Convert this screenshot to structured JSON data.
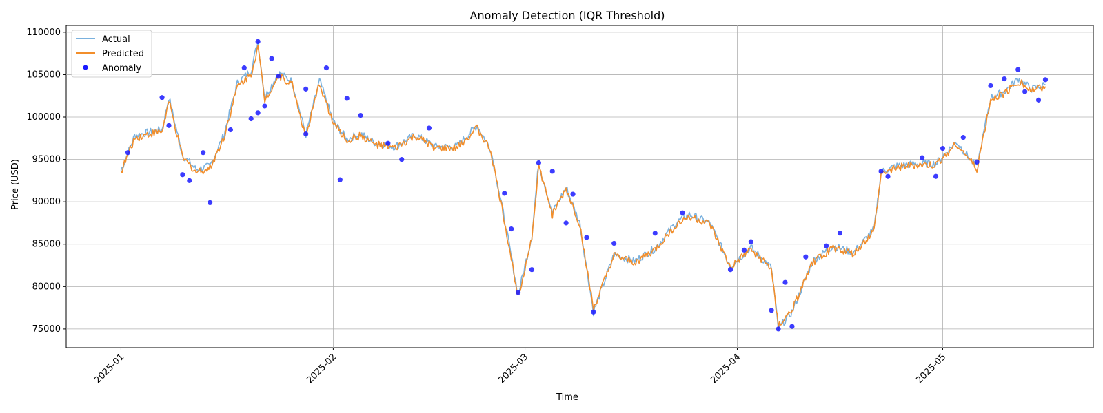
{
  "chart_data": {
    "type": "line",
    "title": "Anomaly Detection (IQR Threshold)",
    "xlabel": "Time",
    "ylabel": "Price (USD)",
    "x_range": [
      "2024-12-24",
      "2025-05-23"
    ],
    "ylim": [
      72800,
      110800
    ],
    "x_ticks": [
      "2025-01",
      "2025-02",
      "2025-03",
      "2025-04",
      "2025-05"
    ],
    "y_ticks": [
      75000,
      80000,
      85000,
      90000,
      95000,
      100000,
      105000,
      110000
    ],
    "grid": true,
    "legend_position": "top-left",
    "colors": {
      "actual": "#7ab1de",
      "predicted": "#f28e2b",
      "anomaly": "#1a1aff"
    },
    "series": [
      {
        "name": "Actual",
        "x": [
          "2025-01-01",
          "2025-01-03",
          "2025-01-05",
          "2025-01-07",
          "2025-01-08",
          "2025-01-10",
          "2025-01-12",
          "2025-01-14",
          "2025-01-16",
          "2025-01-18",
          "2025-01-20",
          "2025-01-21",
          "2025-01-22",
          "2025-01-24",
          "2025-01-26",
          "2025-01-28",
          "2025-01-30",
          "2025-02-01",
          "2025-02-03",
          "2025-02-05",
          "2025-02-07",
          "2025-02-10",
          "2025-02-13",
          "2025-02-16",
          "2025-02-19",
          "2025-02-22",
          "2025-02-24",
          "2025-02-26",
          "2025-02-28",
          "2025-03-02",
          "2025-03-03",
          "2025-03-05",
          "2025-03-07",
          "2025-03-09",
          "2025-03-11",
          "2025-03-14",
          "2025-03-17",
          "2025-03-20",
          "2025-03-23",
          "2025-03-25",
          "2025-03-28",
          "2025-03-31",
          "2025-04-03",
          "2025-04-06",
          "2025-04-07",
          "2025-04-09",
          "2025-04-12",
          "2025-04-15",
          "2025-04-18",
          "2025-04-21",
          "2025-04-22",
          "2025-04-24",
          "2025-04-27",
          "2025-04-30",
          "2025-05-03",
          "2025-05-06",
          "2025-05-08",
          "2025-05-10",
          "2025-05-12",
          "2025-05-14",
          "2025-05-16"
        ],
        "values": [
          93700,
          97800,
          98200,
          98500,
          102300,
          95500,
          93800,
          94200,
          97800,
          104000,
          105500,
          108900,
          102300,
          105200,
          104200,
          97900,
          104300,
          99500,
          97400,
          98000,
          97000,
          96500,
          97900,
          96500,
          96500,
          99000,
          96200,
          88000,
          79000,
          86000,
          94600,
          88700,
          91700,
          87500,
          77000,
          83800,
          83000,
          84500,
          87500,
          88500,
          87500,
          82400,
          84600,
          82200,
          75000,
          77000,
          83000,
          84800,
          84000,
          86800,
          93500,
          94200,
          94500,
          94500,
          97100,
          94000,
          102300,
          103000,
          104500,
          103300,
          103800
        ]
      },
      {
        "name": "Predicted",
        "x": [
          "2025-01-01",
          "2025-01-03",
          "2025-01-05",
          "2025-01-07",
          "2025-01-08",
          "2025-01-10",
          "2025-01-12",
          "2025-01-14",
          "2025-01-16",
          "2025-01-18",
          "2025-01-20",
          "2025-01-21",
          "2025-01-22",
          "2025-01-24",
          "2025-01-26",
          "2025-01-28",
          "2025-01-30",
          "2025-02-01",
          "2025-02-03",
          "2025-02-05",
          "2025-02-07",
          "2025-02-10",
          "2025-02-13",
          "2025-02-16",
          "2025-02-19",
          "2025-02-22",
          "2025-02-24",
          "2025-02-26",
          "2025-02-28",
          "2025-03-02",
          "2025-03-03",
          "2025-03-05",
          "2025-03-07",
          "2025-03-09",
          "2025-03-11",
          "2025-03-14",
          "2025-03-17",
          "2025-03-20",
          "2025-03-23",
          "2025-03-25",
          "2025-03-28",
          "2025-03-31",
          "2025-04-03",
          "2025-04-06",
          "2025-04-07",
          "2025-04-09",
          "2025-04-12",
          "2025-04-15",
          "2025-04-18",
          "2025-04-21",
          "2025-04-22",
          "2025-04-24",
          "2025-04-27",
          "2025-04-30",
          "2025-05-03",
          "2025-05-06",
          "2025-05-08",
          "2025-05-10",
          "2025-05-12",
          "2025-05-14",
          "2025-05-16"
        ],
        "values": [
          93500,
          97500,
          98000,
          98300,
          101800,
          95200,
          93500,
          94000,
          97500,
          103600,
          105100,
          108300,
          102000,
          104900,
          103900,
          97600,
          104000,
          99300,
          97200,
          97800,
          96800,
          96300,
          97700,
          96300,
          96300,
          98700,
          96000,
          87700,
          78800,
          85800,
          94200,
          88500,
          91500,
          87300,
          77300,
          83600,
          82800,
          84300,
          87200,
          88300,
          87300,
          82200,
          84400,
          82000,
          75300,
          77200,
          82800,
          84600,
          83800,
          86600,
          93200,
          94000,
          94300,
          94300,
          96900,
          93800,
          102000,
          102800,
          104200,
          103100,
          103600
        ]
      },
      {
        "name": "Anomaly",
        "x": [
          "2025-01-02",
          "2025-01-07",
          "2025-01-08",
          "2025-01-10",
          "2025-01-11",
          "2025-01-13",
          "2025-01-14",
          "2025-01-17",
          "2025-01-19",
          "2025-01-20",
          "2025-01-21",
          "2025-01-21",
          "2025-01-22",
          "2025-01-23",
          "2025-01-24",
          "2025-01-28",
          "2025-01-28",
          "2025-01-31",
          "2025-02-02",
          "2025-02-03",
          "2025-02-05",
          "2025-02-09",
          "2025-02-11",
          "2025-02-15",
          "2025-02-26",
          "2025-02-27",
          "2025-02-28",
          "2025-03-02",
          "2025-03-03",
          "2025-03-05",
          "2025-03-07",
          "2025-03-08",
          "2025-03-10",
          "2025-03-11",
          "2025-03-14",
          "2025-03-20",
          "2025-03-24",
          "2025-03-31",
          "2025-04-02",
          "2025-04-03",
          "2025-04-06",
          "2025-04-07",
          "2025-04-08",
          "2025-04-09",
          "2025-04-11",
          "2025-04-14",
          "2025-04-16",
          "2025-04-22",
          "2025-04-23",
          "2025-04-28",
          "2025-04-30",
          "2025-05-01",
          "2025-05-04",
          "2025-05-06",
          "2025-05-08",
          "2025-05-10",
          "2025-05-12",
          "2025-05-13",
          "2025-05-15",
          "2025-05-16"
        ],
        "values": [
          95800,
          102300,
          99000,
          93200,
          92500,
          95800,
          89900,
          98500,
          105800,
          99800,
          108900,
          100500,
          101300,
          106900,
          104800,
          98000,
          103300,
          105800,
          92600,
          102200,
          100200,
          96900,
          95000,
          98700,
          91000,
          86800,
          79300,
          82000,
          94600,
          93600,
          87500,
          90900,
          85800,
          77000,
          85100,
          86300,
          88700,
          82000,
          84300,
          85300,
          77200,
          75000,
          80500,
          75300,
          83500,
          84800,
          86300,
          93600,
          93000,
          95200,
          93000,
          96300,
          97600,
          94700,
          103700,
          104500,
          105600,
          103000,
          102000,
          104400
        ]
      }
    ]
  }
}
